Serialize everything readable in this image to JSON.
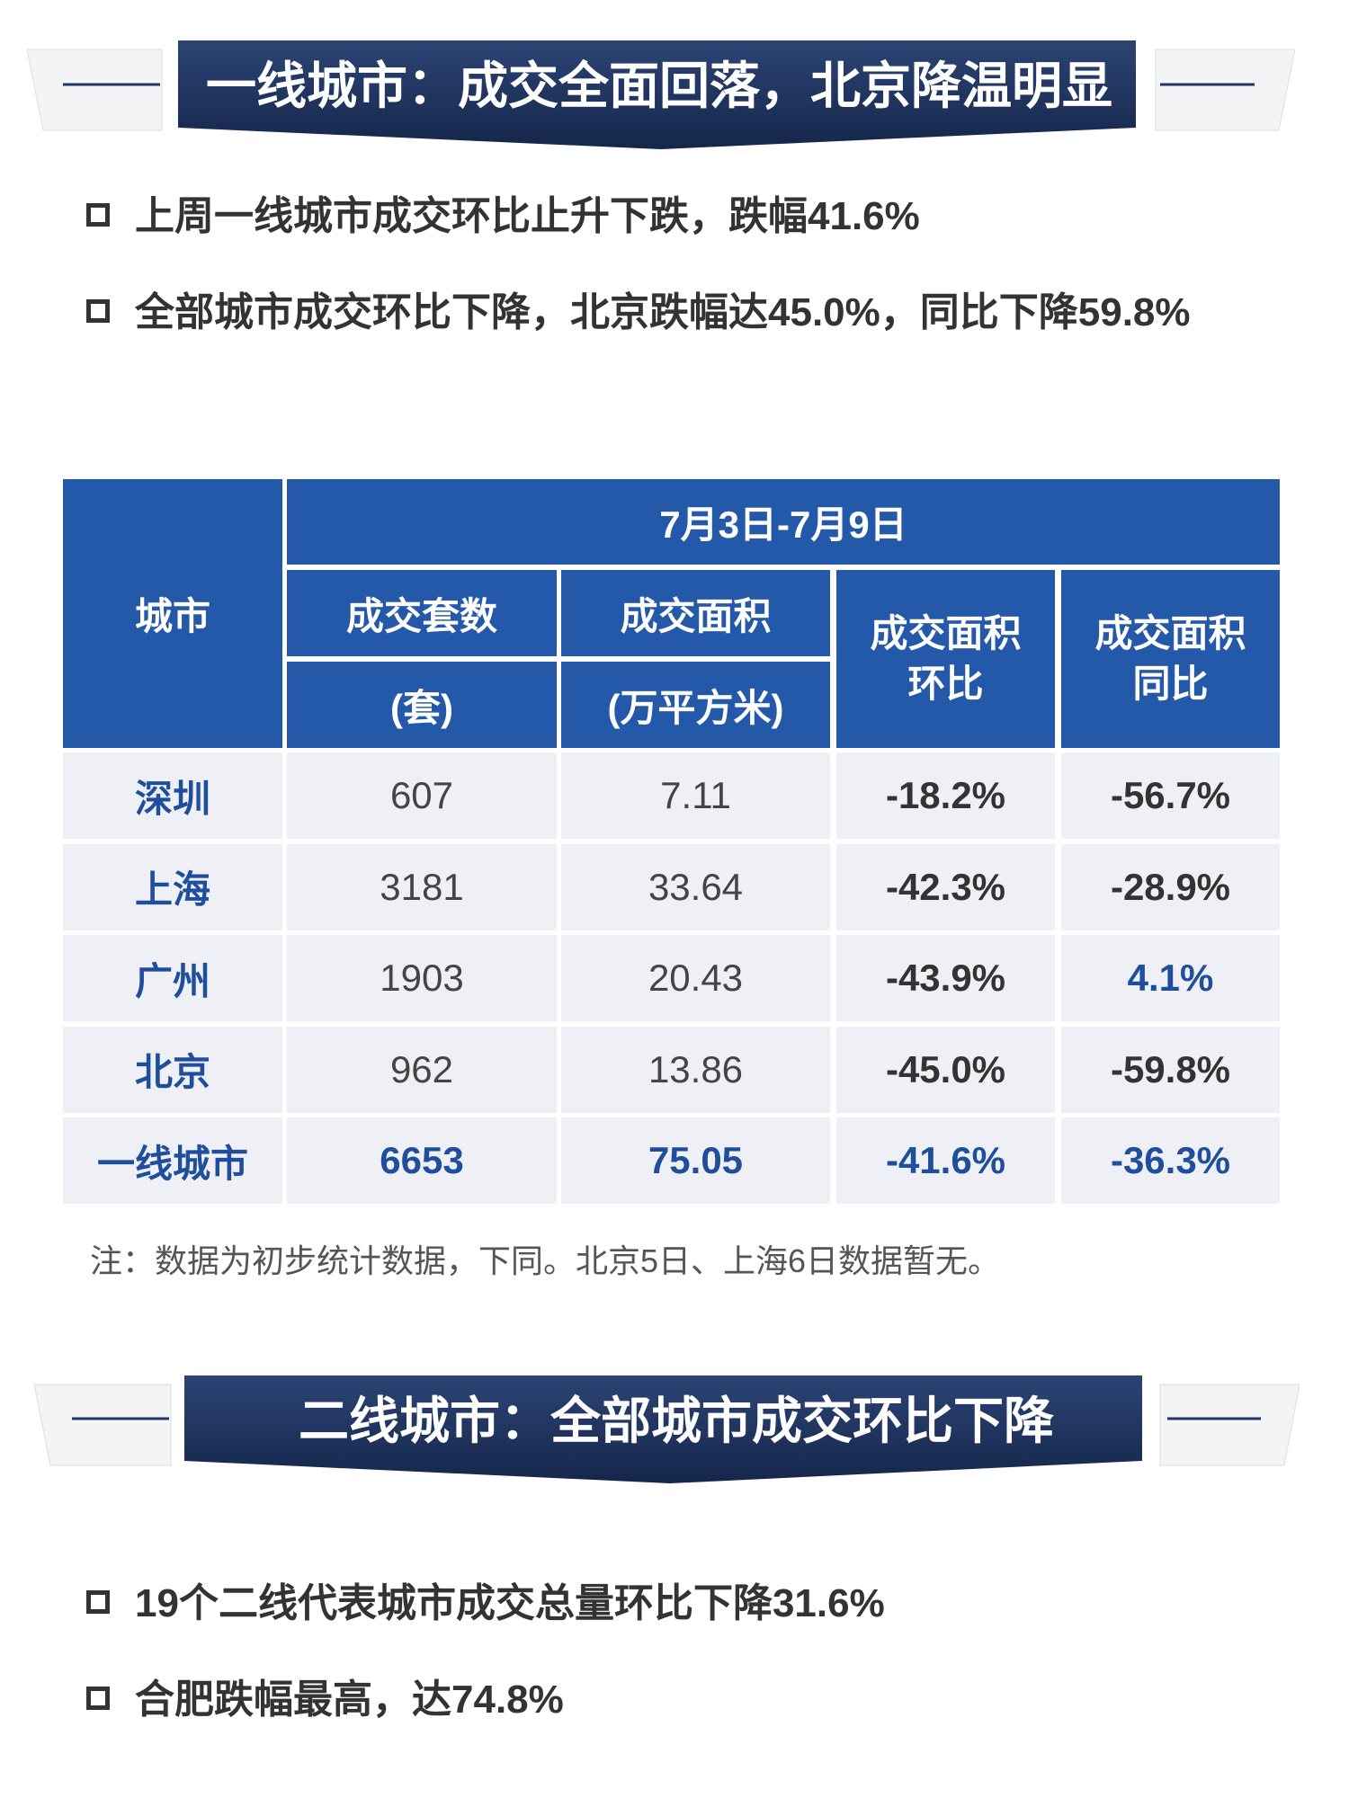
{
  "banner1": {
    "title": "一线城市：成交全面回落，北京降温明显"
  },
  "bullets1": [
    "上周一线城市成交环比止升下跌，跌幅41.6%",
    "全部城市成交环比下降，北京跌幅达45.0%，同比下降59.8%"
  ],
  "table": {
    "period": "7月3日-7月9日",
    "headers": {
      "city": "城市",
      "units": "成交套数",
      "units_unit": "(套)",
      "area": "成交面积",
      "area_unit": "(万平方米)",
      "mom": "成交面积环比",
      "yoy": "成交面积同比"
    },
    "rows": [
      [
        "深圳",
        "607",
        "7.11",
        "-18.2%",
        "-56.7%"
      ],
      [
        "上海",
        "3181",
        "33.64",
        "-42.3%",
        "-28.9%"
      ],
      [
        "广州",
        "1903",
        "20.43",
        "-43.9%",
        "4.1%"
      ],
      [
        "北京",
        "962",
        "13.86",
        "-45.0%",
        "-59.8%"
      ],
      [
        "一线城市",
        "6653",
        "75.05",
        "-41.6%",
        "-36.3%"
      ]
    ]
  },
  "note": "注：数据为初步统计数据，下同。北京5日、上海6日数据暂无。",
  "banner2": {
    "title": "二线城市：全部城市成交环比下降"
  },
  "bullets2": [
    "19个二线代表城市成交总量环比下降31.6%",
    "合肥跌幅最高，达74.8%"
  ]
}
